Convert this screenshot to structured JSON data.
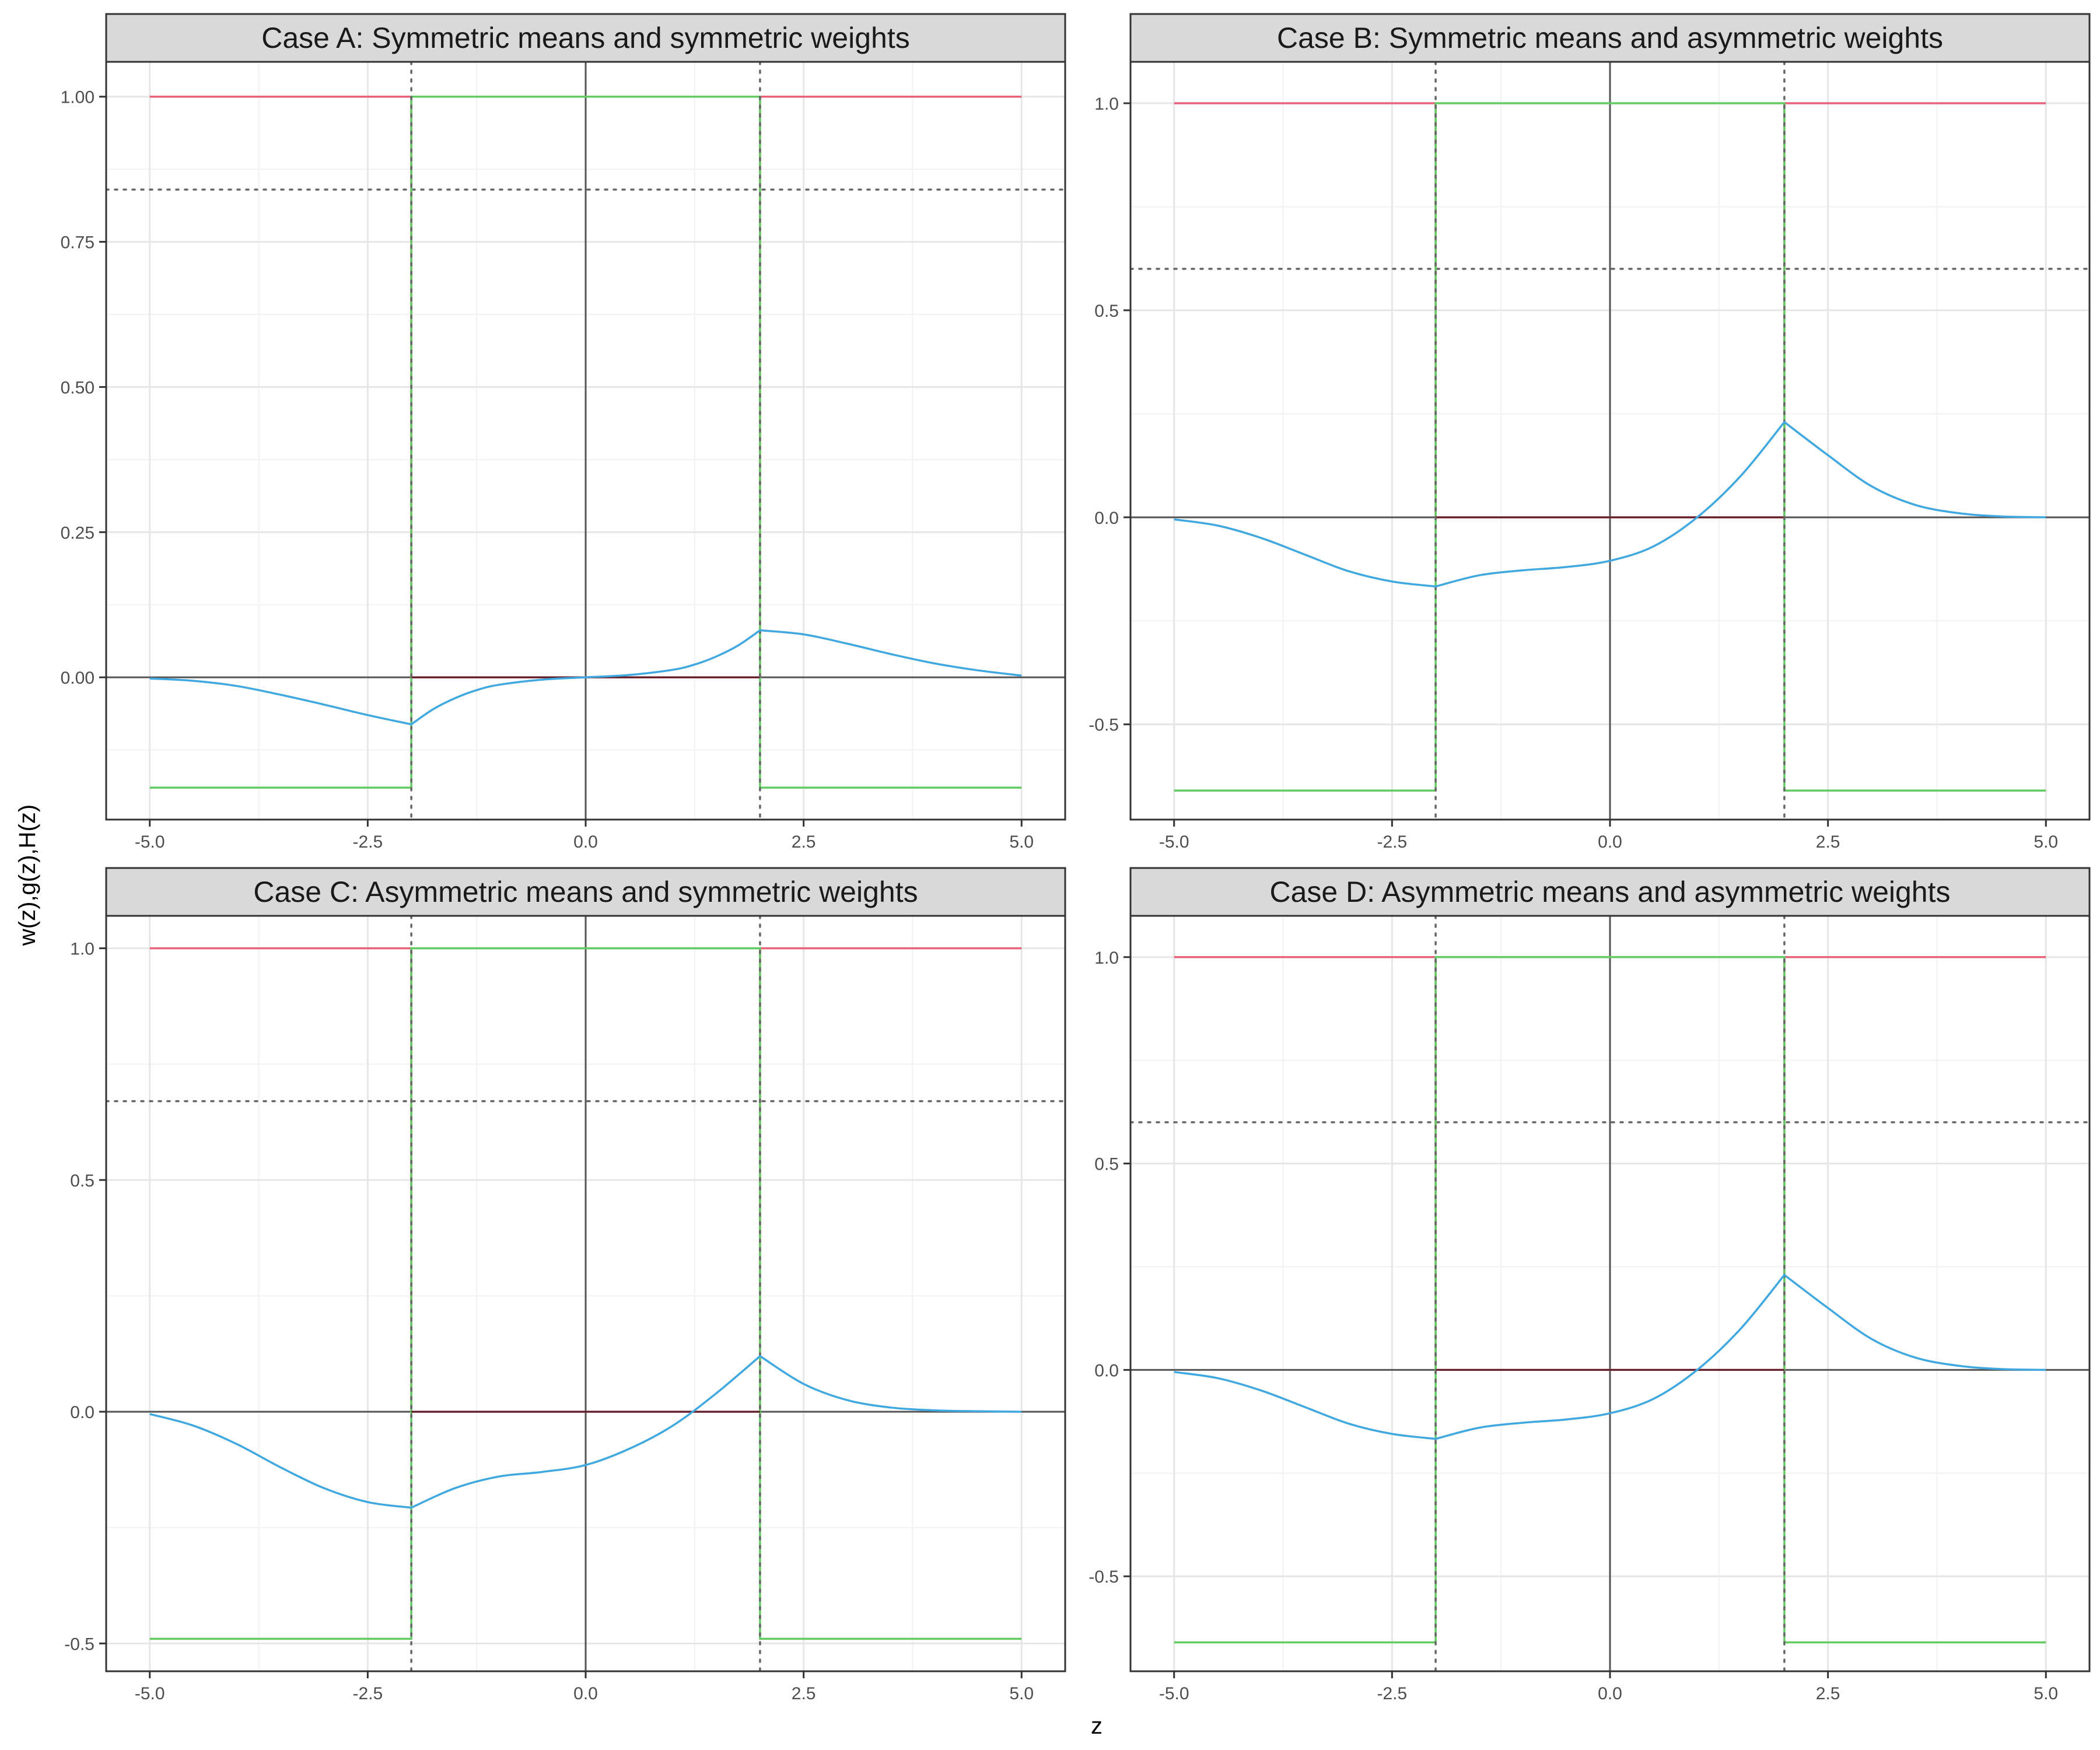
{
  "figure": {
    "xlabel": "z",
    "ylabel": "w(z),g(z),H(z)"
  },
  "colors": {
    "w": "#e8637a",
    "g": "#62cc62",
    "H": "#40a8e0",
    "zero_line": "#555555",
    "ref_line": "#666666",
    "gridMajor": "#e6e6e6",
    "gridMinor": "#f2f2f2",
    "strip_bg": "#d9d9d9"
  },
  "chart_data": [
    {
      "type": "line",
      "title": "Case A: Symmetric means and symmetric weights",
      "xlim": [
        -5.5,
        5.5
      ],
      "ylim": [
        -0.245,
        1.06
      ],
      "xticks": [
        -5,
        -2.5,
        0,
        2.5,
        5
      ],
      "xtick_labels": [
        "-5.0",
        "-2.5",
        "0.0",
        "2.5",
        "5.0"
      ],
      "yticks": [
        0,
        0.25,
        0.5,
        0.75,
        1
      ],
      "ytick_labels": [
        "0.00",
        "0.25",
        "0.50",
        "0.75",
        "1.00"
      ],
      "vlines": [
        -2,
        2
      ],
      "hline": 0.84,
      "breaks": [
        -2,
        2
      ],
      "w": {
        "in": 0,
        "out": 1
      },
      "g": {
        "in": 1,
        "out": -0.19
      },
      "H": {
        "x": [
          -5,
          -4.5,
          -4,
          -3.5,
          -3,
          -2.5,
          -2,
          -1.75,
          -1.5,
          -1.25,
          -1,
          -0.5,
          0,
          0.5,
          1,
          1.25,
          1.5,
          1.75,
          2,
          2.5,
          3,
          3.5,
          4,
          4.5,
          5
        ],
        "y": [
          -0.002,
          -0.006,
          -0.015,
          -0.03,
          -0.047,
          -0.065,
          -0.081,
          -0.055,
          -0.036,
          -0.022,
          -0.013,
          -0.004,
          0,
          0.004,
          0.013,
          0.022,
          0.036,
          0.055,
          0.081,
          0.074,
          0.058,
          0.04,
          0.024,
          0.012,
          0.003
        ]
      }
    },
    {
      "type": "line",
      "title": "Case B: Symmetric means and asymmetric weights",
      "xlim": [
        -5.5,
        5.5
      ],
      "ylim": [
        -0.73,
        1.1
      ],
      "xticks": [
        -5,
        -2.5,
        0,
        2.5,
        5
      ],
      "xtick_labels": [
        "-5.0",
        "-2.5",
        "0.0",
        "2.5",
        "5.0"
      ],
      "yticks": [
        -0.5,
        0,
        0.5,
        1
      ],
      "ytick_labels": [
        "-0.5",
        "0.0",
        "0.5",
        "1.0"
      ],
      "vlines": [
        -2,
        2
      ],
      "hline": 0.6,
      "breaks": [
        -2,
        2
      ],
      "w": {
        "in": 0,
        "out": 1
      },
      "g": {
        "in": 1,
        "out": -0.66
      },
      "H": {
        "x": [
          -5,
          -4.5,
          -4,
          -3.5,
          -3,
          -2.5,
          -2,
          -1.5,
          -1,
          -0.5,
          0,
          0.5,
          1,
          1.5,
          2,
          2.5,
          3,
          3.5,
          4,
          4.5,
          5
        ],
        "y": [
          -0.005,
          -0.02,
          -0.05,
          -0.09,
          -0.13,
          -0.155,
          -0.167,
          -0.14,
          -0.128,
          -0.12,
          -0.105,
          -0.07,
          0,
          0.1,
          0.23,
          0.15,
          0.075,
          0.03,
          0.01,
          0.002,
          0
        ]
      }
    },
    {
      "type": "line",
      "title": "Case C: Asymmetric means and symmetric weights",
      "xlim": [
        -5.5,
        5.5
      ],
      "ylim": [
        -0.56,
        1.07
      ],
      "xticks": [
        -5,
        -2.5,
        0,
        2.5,
        5
      ],
      "xtick_labels": [
        "-5.0",
        "-2.5",
        "0.0",
        "2.5",
        "5.0"
      ],
      "yticks": [
        -0.5,
        0,
        0.5,
        1
      ],
      "ytick_labels": [
        "-0.5",
        "0.0",
        "0.5",
        "1.0"
      ],
      "vlines": [
        -2,
        2
      ],
      "hline": 0.67,
      "breaks": [
        -2,
        2
      ],
      "w": {
        "in": 0,
        "out": 1
      },
      "g": {
        "in": 1,
        "out": -0.49
      },
      "H": {
        "x": [
          -5,
          -4.5,
          -4,
          -3.5,
          -3,
          -2.5,
          -2,
          -1.5,
          -1,
          -0.5,
          0,
          0.5,
          1,
          1.5,
          2,
          2.5,
          3,
          3.5,
          4,
          4.5,
          5
        ],
        "y": [
          -0.005,
          -0.03,
          -0.07,
          -0.12,
          -0.165,
          -0.195,
          -0.207,
          -0.165,
          -0.14,
          -0.13,
          -0.115,
          -0.08,
          -0.03,
          0.04,
          0.12,
          0.06,
          0.025,
          0.009,
          0.003,
          0.001,
          0
        ]
      }
    },
    {
      "type": "line",
      "title": "Case D: Asymmetric means and asymmetric weights",
      "xlim": [
        -5.5,
        5.5
      ],
      "ylim": [
        -0.73,
        1.1
      ],
      "xticks": [
        -5,
        -2.5,
        0,
        2.5,
        5
      ],
      "xtick_labels": [
        "-5.0",
        "-2.5",
        "0.0",
        "2.5",
        "5.0"
      ],
      "yticks": [
        -0.5,
        0,
        0.5,
        1
      ],
      "ytick_labels": [
        "-0.5",
        "0.0",
        "0.5",
        "1.0"
      ],
      "vlines": [
        -2,
        2
      ],
      "hline": 0.6,
      "breaks": [
        -2,
        2
      ],
      "w": {
        "in": 0,
        "out": 1
      },
      "g": {
        "in": 1,
        "out": -0.66
      },
      "H": {
        "x": [
          -5,
          -4.5,
          -4,
          -3.5,
          -3,
          -2.5,
          -2,
          -1.5,
          -1,
          -0.5,
          0,
          0.5,
          1,
          1.5,
          2,
          2.5,
          3,
          3.5,
          4,
          4.5,
          5
        ],
        "y": [
          -0.005,
          -0.02,
          -0.05,
          -0.09,
          -0.13,
          -0.155,
          -0.167,
          -0.14,
          -0.128,
          -0.12,
          -0.105,
          -0.07,
          0,
          0.1,
          0.23,
          0.15,
          0.075,
          0.03,
          0.01,
          0.002,
          0
        ]
      }
    }
  ]
}
